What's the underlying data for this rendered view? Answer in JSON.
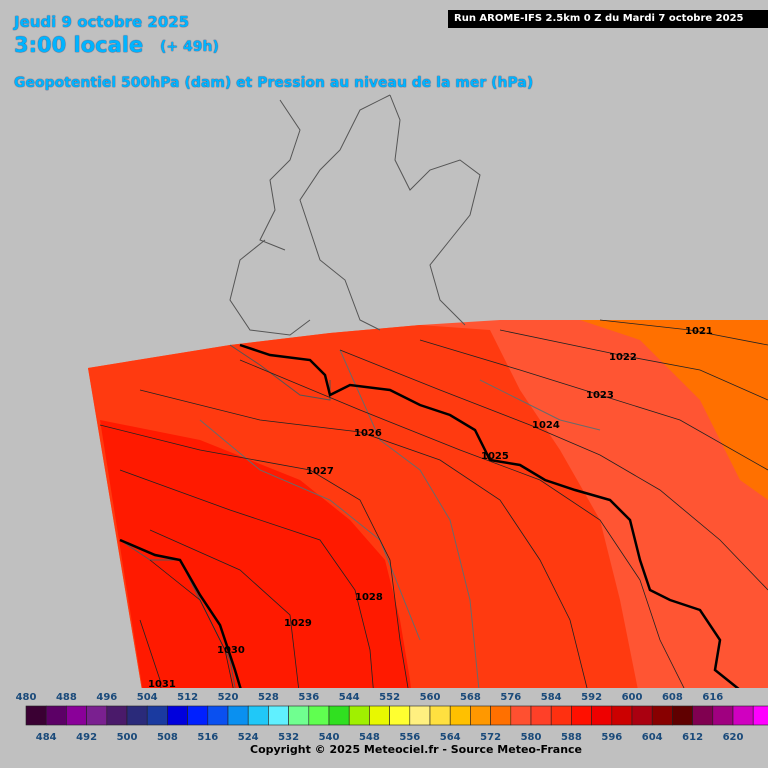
{
  "header": {
    "date": "Jeudi 9 octobre 2025",
    "time": "3:00 locale",
    "lead": "(+ 49h)",
    "field": "Geopotentiel 500hPa (dam) et Pression au niveau de la mer (hPa)",
    "run": "Run AROME-IFS 2.5km 0 Z du Mardi 7 octobre 2025"
  },
  "isobars": [
    {
      "value": "1021"
    },
    {
      "value": "1022"
    },
    {
      "value": "1023"
    },
    {
      "value": "1024"
    },
    {
      "value": "1025"
    },
    {
      "value": "1026"
    },
    {
      "value": "1027"
    },
    {
      "value": "1028"
    },
    {
      "value": "1029"
    },
    {
      "value": "1030"
    },
    {
      "value": "1031"
    }
  ],
  "legend": {
    "unit": "dam",
    "top_labels": [
      "480",
      "488",
      "496",
      "504",
      "512",
      "520",
      "528",
      "536",
      "544",
      "552",
      "560",
      "568",
      "576",
      "584",
      "592",
      "600",
      "608",
      "616"
    ],
    "bottom_labels": [
      "484",
      "492",
      "500",
      "508",
      "516",
      "524",
      "532",
      "540",
      "548",
      "556",
      "564",
      "572",
      "580",
      "588",
      "596",
      "604",
      "612",
      "620"
    ],
    "colors": [
      "#3a0033",
      "#5c0066",
      "#8a0099",
      "#7a2090",
      "#4a1a6a",
      "#2a2a7a",
      "#1a3aa0",
      "#0000dd",
      "#0020ff",
      "#0a50f0",
      "#0a90f0",
      "#20c8f8",
      "#60f0ff",
      "#70ff90",
      "#60ff50",
      "#30e020",
      "#a0f000",
      "#e8f800",
      "#ffff30",
      "#fff080",
      "#ffe040",
      "#ffc000",
      "#ff9800",
      "#ff7000",
      "#ff5030",
      "#ff4028",
      "#ff3010",
      "#ff1000",
      "#ee0000",
      "#cc0000",
      "#aa0010",
      "#880000",
      "#600000",
      "#800050",
      "#a00080",
      "#d000c0",
      "#ff00ff",
      "#ff40f0",
      "#ff80ff"
    ]
  },
  "copyright": "Copyright © 2025 Meteociel.fr - Source Meteo-France"
}
